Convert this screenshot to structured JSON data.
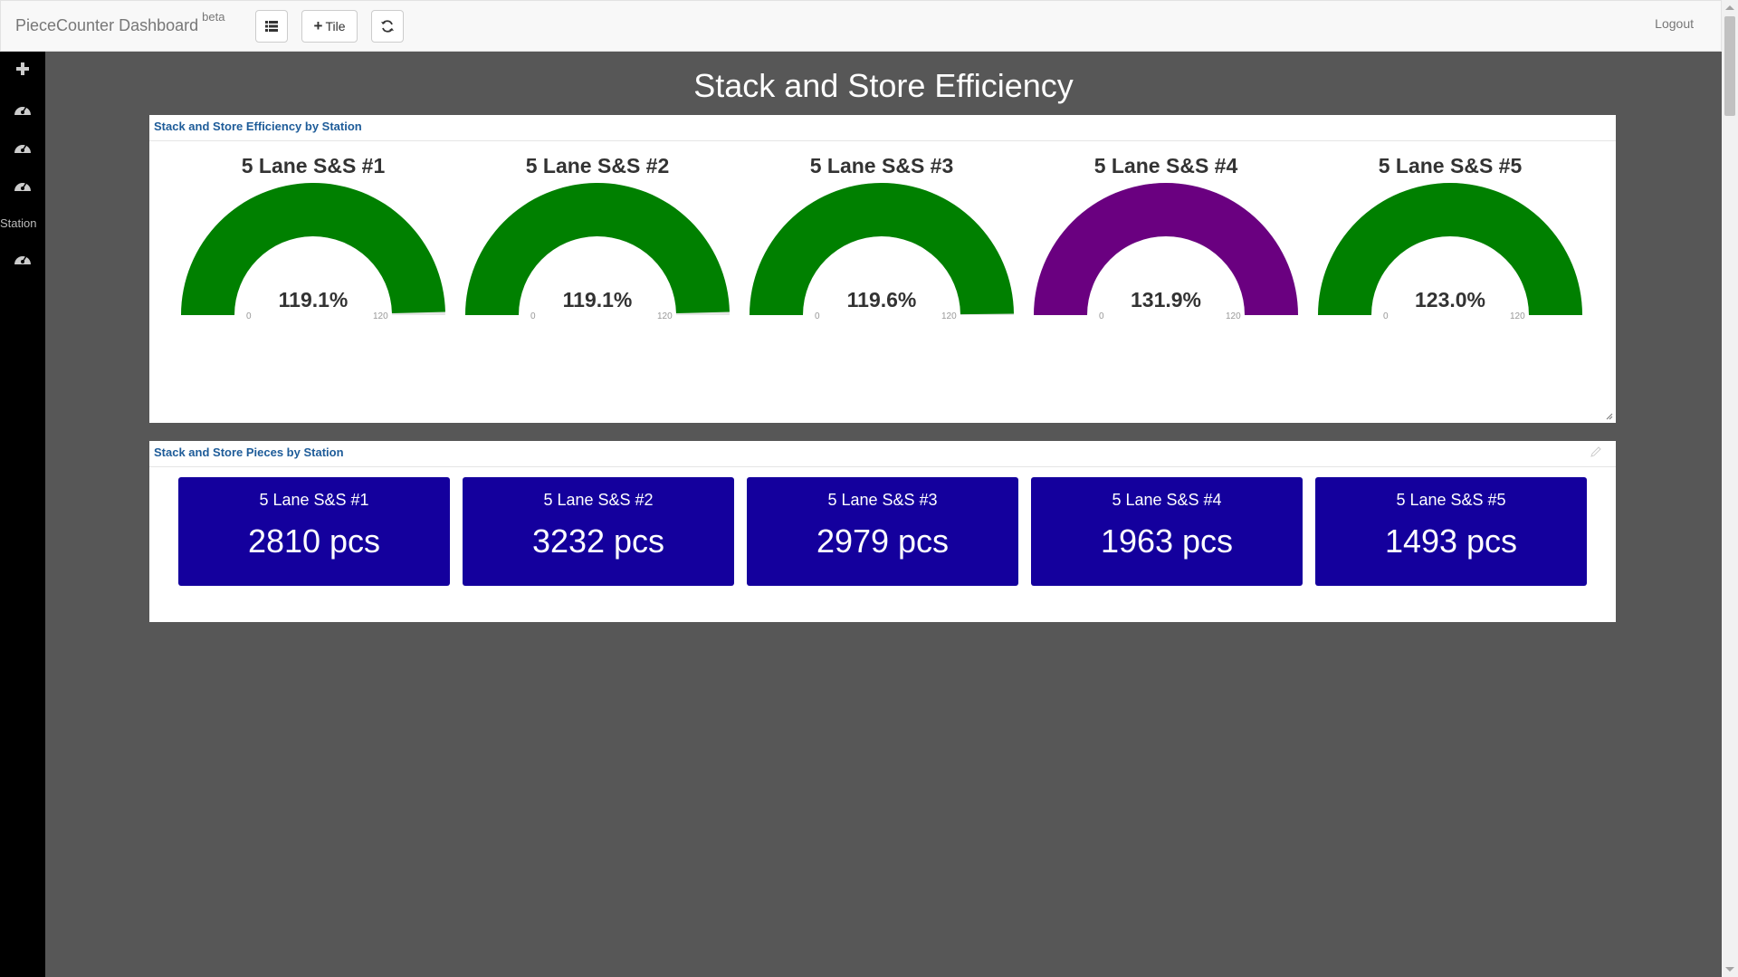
{
  "navbar": {
    "brand": "PieceCounter Dashboard",
    "brand_sup": "beta",
    "tile_button": "Tile",
    "logout": "Logout"
  },
  "sidebar": {
    "items": [
      {
        "icon": "plus-icon"
      },
      {
        "icon": "dashboard-icon"
      },
      {
        "icon": "dashboard-icon"
      },
      {
        "icon": "dashboard-icon"
      },
      {
        "label": "Station"
      },
      {
        "icon": "dashboard-icon"
      }
    ]
  },
  "page": {
    "title": "Stack and Store Efficiency"
  },
  "efficiency_panel": {
    "title": "Stack and Store Efficiency by Station",
    "gauges": [
      {
        "name": "5 Lane S&S #1",
        "value_text": "119.1%",
        "value": 119.1,
        "min": "0",
        "max": "120",
        "color": "#008000"
      },
      {
        "name": "5 Lane S&S #2",
        "value_text": "119.1%",
        "value": 119.1,
        "min": "0",
        "max": "120",
        "color": "#008000"
      },
      {
        "name": "5 Lane S&S #3",
        "value_text": "119.6%",
        "value": 119.6,
        "min": "0",
        "max": "120",
        "color": "#008000"
      },
      {
        "name": "5 Lane S&S #4",
        "value_text": "131.9%",
        "value": 131.9,
        "min": "0",
        "max": "120",
        "color": "#6a0080"
      },
      {
        "name": "5 Lane S&S #5",
        "value_text": "123.0%",
        "value": 123.0,
        "min": "0",
        "max": "120",
        "color": "#008000"
      }
    ]
  },
  "pieces_panel": {
    "title": "Stack and Store Pieces by Station",
    "tiles": [
      {
        "name": "5 Lane S&S #1",
        "count": "2810 pcs"
      },
      {
        "name": "5 Lane S&S #2",
        "count": "3232 pcs"
      },
      {
        "name": "5 Lane S&S #3",
        "count": "2979 pcs"
      },
      {
        "name": "5 Lane S&S #4",
        "count": "1963 pcs"
      },
      {
        "name": "5 Lane S&S #5",
        "count": "1493 pcs"
      }
    ],
    "tile_color": "#14009d"
  }
}
